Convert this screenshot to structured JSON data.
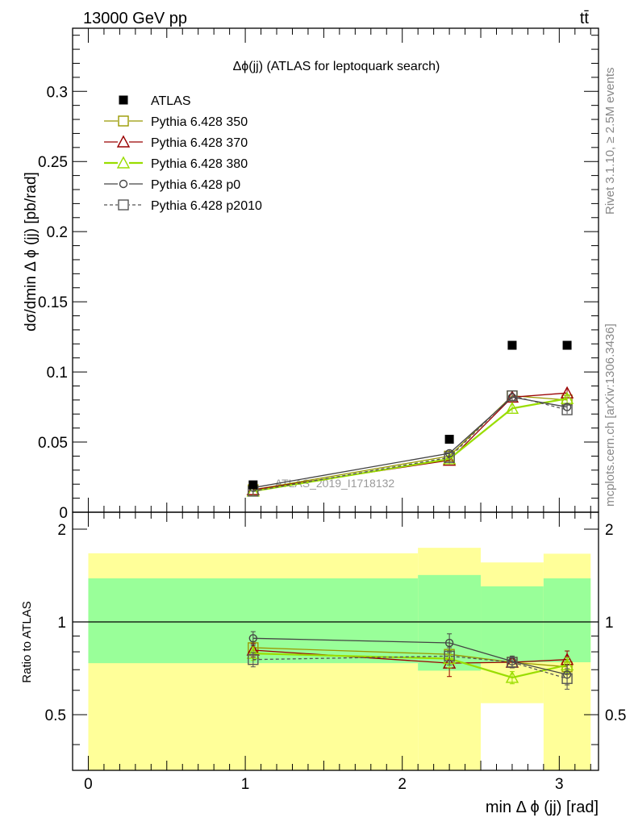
{
  "header": {
    "energy_label": "13000 GeV pp",
    "process_label": "tt̄"
  },
  "side_labels": {
    "rivet": "Rivet 3.1.10, ≥ 2.5M events",
    "mcplots": "mcplots.cern.ch [arXiv:1306.3436]"
  },
  "chart_data": {
    "type": "scatter",
    "title": "Δϕ(jj) (ATLAS for leptoquark search)",
    "watermark": "ATLAS_2019_I1718132",
    "xlabel": "min Δ ϕ (jj) [rad]",
    "ylabel": "dσ/dmin Δ ϕ (jj) [pb/rad]",
    "ratio_ylabel": "Ratio to ATLAS",
    "xlim": [
      -0.1,
      3.25
    ],
    "ylim": [
      0,
      0.345
    ],
    "ratio_ylim": [
      0.33,
      2.27
    ],
    "x_ticks": [
      0,
      1,
      2,
      3
    ],
    "y_ticks": [
      0,
      0.05,
      0.1,
      0.15,
      0.2,
      0.25,
      0.3
    ],
    "y_tick_labels": [
      "0",
      "0.05",
      "0.1",
      "0.15",
      "0.2",
      "0.25",
      "0.3"
    ],
    "ratio_ticks": [
      0.5,
      1,
      2
    ],
    "ratio_tick_labels": [
      "0.5",
      "1",
      "2"
    ],
    "legend_position": "top-left",
    "bin_edges": [
      0,
      2.1,
      2.5,
      2.9,
      3.2
    ],
    "x": [
      1.05,
      2.3,
      2.7,
      3.05
    ],
    "data": {
      "name": "ATLAS",
      "values": [
        0.0195,
        0.052,
        0.119,
        0.119
      ],
      "color": "#000000"
    },
    "ratio_bands": {
      "green_lo": [
        0.735,
        0.695,
        0.74,
        0.74
      ],
      "green_hi": [
        1.385,
        1.42,
        1.305,
        1.385
      ],
      "yellow_lo": [
        0,
        0,
        0.545,
        0
      ],
      "yellow_hi": [
        1.67,
        1.74,
        1.56,
        1.665
      ],
      "green_color": "#99ff99",
      "yellow_color": "#ffff99"
    },
    "series": [
      {
        "name": "Pythia 6.428 350",
        "color": "#999900",
        "marker": "square-open",
        "dash": "solid",
        "values": [
          0.016,
          0.04,
          0.083,
          0.08
        ],
        "ratio": [
          0.825,
          0.785,
          0.74,
          0.715
        ],
        "ratio_err": [
          0.04,
          0.05,
          0.03,
          0.04
        ]
      },
      {
        "name": "Pythia 6.428 370",
        "color": "#990000",
        "marker": "triangle-open",
        "dash": "solid",
        "values": [
          0.016,
          0.037,
          0.082,
          0.085
        ],
        "ratio": [
          0.81,
          0.735,
          0.74,
          0.755
        ],
        "ratio_err": [
          0.04,
          0.07,
          0.03,
          0.05
        ]
      },
      {
        "name": "Pythia 6.428 380",
        "color": "#99dd00",
        "marker": "triangle-open",
        "dash": "solid",
        "values": [
          0.015,
          0.038,
          0.074,
          0.081
        ],
        "ratio": [
          0.79,
          0.76,
          0.66,
          0.725
        ],
        "ratio_err": [
          0.04,
          0.05,
          0.03,
          0.04
        ]
      },
      {
        "name": "Pythia 6.428 p0",
        "color": "#444444",
        "marker": "circle-open",
        "dash": "solid",
        "values": [
          0.0175,
          0.042,
          0.082,
          0.075
        ],
        "ratio": [
          0.885,
          0.855,
          0.745,
          0.675
        ],
        "ratio_err": [
          0.045,
          0.06,
          0.03,
          0.05
        ]
      },
      {
        "name": "Pythia 6.428 p2010",
        "color": "#555555",
        "marker": "square-open",
        "dash": "dashed",
        "values": [
          0.015,
          0.039,
          0.083,
          0.073
        ],
        "ratio": [
          0.755,
          0.775,
          0.74,
          0.655
        ],
        "ratio_err": [
          0.04,
          0.05,
          0.03,
          0.05
        ]
      }
    ]
  }
}
